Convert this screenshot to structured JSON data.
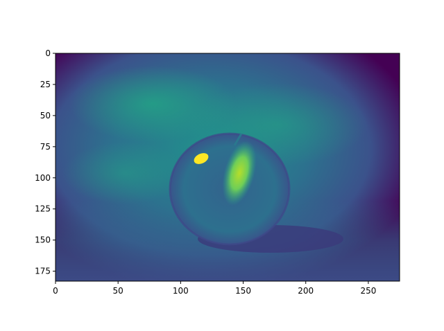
{
  "figure": {
    "type": "image",
    "colormap": "viridis",
    "xlim": [
      0,
      275
    ],
    "ylim": [
      183,
      0
    ],
    "xticks": [
      0,
      50,
      100,
      150,
      200,
      250
    ],
    "yticks": [
      0,
      25,
      50,
      75,
      100,
      125,
      150,
      175
    ],
    "xtick_labels": [
      "0",
      "50",
      "100",
      "150",
      "200",
      "250"
    ],
    "ytick_labels": [
      "0",
      "25",
      "50",
      "75",
      "100",
      "125",
      "150",
      "175"
    ],
    "image_subject": "apple-on-table",
    "colors": {
      "background_dark": "#440154",
      "background_mid": "#2a788e",
      "teal": "#22a884",
      "green": "#7ad151",
      "highlight": "#fde725",
      "axis": "#000000"
    }
  }
}
